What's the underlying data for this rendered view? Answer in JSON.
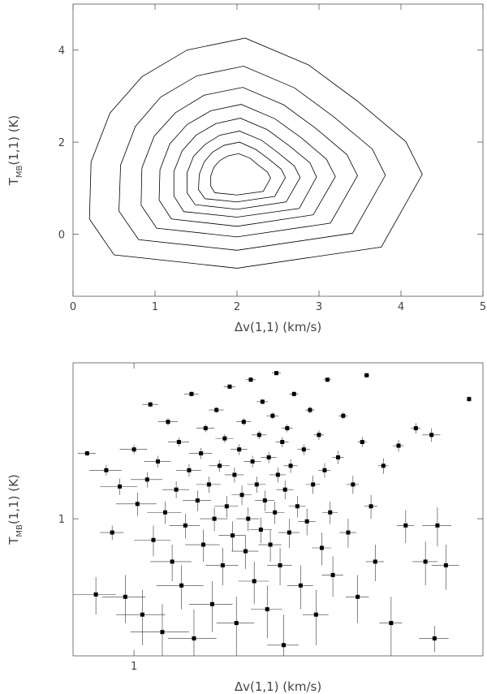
{
  "chart_data": [
    {
      "type": "contour",
      "xlabel": "Δv(1,1) (km/s)",
      "ylabel": [
        "T",
        "MB",
        "(1,1) (K)"
      ],
      "xlim": [
        0,
        5
      ],
      "ylim": [
        -1.35,
        5
      ],
      "xticks": [
        0,
        1,
        2,
        3,
        4,
        5
      ],
      "yticks": [
        0,
        2,
        4
      ],
      "color": "#000000",
      "contours": [
        {
          "x": [
            0.2,
            0.22,
            0.45,
            0.84,
            1.39,
            2.1,
            2.87,
            3.47,
            4.06,
            4.26,
            3.76,
            2.0,
            0.5
          ],
          "y": [
            0.33,
            1.57,
            2.63,
            3.42,
            4.0,
            4.26,
            3.68,
            2.89,
            2.01,
            1.3,
            -0.28,
            -0.74,
            -0.45
          ]
        },
        {
          "x": [
            0.56,
            0.58,
            0.76,
            1.07,
            1.51,
            2.08,
            2.7,
            3.18,
            3.65,
            3.81,
            3.41,
            2.0,
            0.8
          ],
          "y": [
            0.5,
            1.5,
            2.34,
            2.98,
            3.44,
            3.65,
            3.18,
            2.55,
            1.85,
            1.28,
            0.02,
            -0.35,
            -0.12
          ]
        },
        {
          "x": [
            0.83,
            0.84,
            0.99,
            1.25,
            1.6,
            2.07,
            2.57,
            2.96,
            3.34,
            3.47,
            3.14,
            2.0,
            1.02
          ],
          "y": [
            0.63,
            1.44,
            2.13,
            2.64,
            3.02,
            3.19,
            2.81,
            2.3,
            1.73,
            1.27,
            0.24,
            -0.06,
            0.13
          ]
        },
        {
          "x": [
            1.05,
            1.06,
            1.18,
            1.39,
            1.68,
            2.05,
            2.46,
            2.78,
            3.09,
            3.2,
            2.93,
            2.0,
            1.2
          ],
          "y": [
            0.74,
            1.4,
            1.96,
            2.38,
            2.68,
            2.82,
            2.51,
            2.1,
            1.63,
            1.25,
            0.42,
            0.17,
            0.33
          ]
        },
        {
          "x": [
            1.23,
            1.23,
            1.33,
            1.5,
            1.74,
            2.04,
            2.37,
            2.63,
            2.89,
            2.97,
            2.76,
            2.0,
            1.35
          ],
          "y": [
            0.83,
            1.36,
            1.81,
            2.15,
            2.4,
            2.52,
            2.27,
            1.93,
            1.55,
            1.24,
            0.56,
            0.37,
            0.49
          ]
        },
        {
          "x": [
            1.39,
            1.39,
            1.47,
            1.61,
            1.79,
            2.03,
            2.3,
            2.5,
            2.7,
            2.77,
            2.6,
            2.0,
            1.49
          ],
          "y": [
            0.9,
            1.33,
            1.69,
            1.95,
            2.15,
            2.24,
            2.04,
            1.77,
            1.48,
            1.23,
            0.7,
            0.54,
            0.64
          ]
        },
        {
          "x": [
            1.53,
            1.54,
            1.6,
            1.7,
            1.84,
            2.03,
            2.23,
            2.38,
            2.54,
            2.59,
            2.46,
            2.0,
            1.61
          ],
          "y": [
            0.97,
            1.3,
            1.57,
            1.78,
            1.93,
            2.0,
            1.84,
            1.64,
            1.41,
            1.23,
            0.82,
            0.7,
            0.77
          ]
        },
        {
          "x": [
            1.68,
            1.68,
            1.72,
            1.79,
            1.89,
            2.02,
            2.16,
            2.26,
            2.37,
            2.41,
            2.32,
            2.0,
            1.73
          ],
          "y": [
            1.04,
            1.27,
            1.46,
            1.6,
            1.7,
            1.75,
            1.65,
            1.5,
            1.35,
            1.22,
            0.93,
            0.85,
            0.9
          ]
        }
      ]
    },
    {
      "type": "scatter",
      "xlabel": "Δv(1,1) (km/s)",
      "ylabel": [
        "T",
        "MB",
        "(1,1) (K)"
      ],
      "xlim": [
        0.7,
        7.7
      ],
      "ylim": [
        0.35,
        3.3
      ],
      "xticks": [
        1
      ],
      "yticks": [
        1
      ],
      "logx": true,
      "logy": true,
      "color": "#000000",
      "x": [
        0.76,
        0.8,
        0.85,
        0.88,
        0.92,
        0.95,
        1.0,
        1.02,
        1.05,
        1.08,
        1.1,
        1.12,
        1.15,
        1.18,
        1.2,
        1.22,
        1.25,
        1.28,
        1.3,
        1.32,
        1.35,
        1.38,
        1.4,
        1.42,
        1.45,
        1.48,
        1.5,
        1.52,
        1.55,
        1.58,
        1.6,
        1.62,
        1.65,
        1.68,
        1.7,
        1.72,
        1.75,
        1.78,
        1.8,
        1.82,
        1.85,
        1.88,
        1.9,
        1.92,
        1.95,
        1.98,
        2.0,
        2.02,
        2.05,
        2.08,
        2.1,
        2.12,
        2.15,
        2.18,
        2.2,
        2.22,
        2.25,
        2.28,
        2.3,
        2.32,
        2.35,
        2.38,
        2.4,
        2.42,
        2.45,
        2.48,
        2.5,
        2.55,
        2.6,
        2.65,
        2.7,
        2.75,
        2.8,
        2.85,
        2.9,
        2.95,
        3.0,
        3.05,
        3.1,
        3.15,
        3.2,
        3.3,
        3.4,
        3.5,
        3.6,
        3.7,
        3.8,
        3.9,
        4.0,
        4.1,
        4.3,
        4.5,
        4.7,
        4.9,
        5.2,
        5.5,
        5.7,
        5.9,
        6.2,
        5.8,
        7.1
      ],
      "y": [
        1.65,
        0.56,
        1.45,
        0.9,
        1.28,
        0.55,
        1.7,
        1.12,
        0.48,
        1.35,
        2.4,
        0.85,
        1.55,
        0.42,
        1.05,
        2.1,
        0.72,
        1.25,
        1.8,
        0.6,
        0.95,
        1.45,
        2.6,
        0.4,
        1.15,
        1.65,
        0.82,
        2.0,
        1.3,
        0.52,
        1.0,
        2.3,
        1.5,
        0.7,
        1.85,
        1.1,
        2.75,
        0.88,
        1.4,
        0.45,
        1.7,
        1.2,
        2.1,
        0.78,
        1.0,
        2.9,
        1.55,
        0.62,
        1.3,
        1.9,
        0.92,
        2.45,
        1.15,
        0.5,
        1.6,
        0.82,
        2.2,
        1.05,
        3.05,
        1.4,
        0.7,
        1.8,
        0.38,
        1.25,
        2.0,
        0.9,
        1.5,
        2.6,
        1.1,
        0.6,
        1.7,
        0.98,
        2.3,
        1.3,
        0.48,
        1.9,
        0.8,
        1.45,
        2.9,
        1.05,
        0.65,
        1.6,
        2.2,
        0.9,
        1.3,
        0.55,
        1.8,
        3.0,
        1.1,
        0.72,
        1.5,
        0.45,
        1.75,
        0.95,
        2.0,
        0.72,
        1.9,
        0.95,
        0.7,
        0.4,
        2.5
      ],
      "xerr": [
        0.04,
        0.1,
        0.08,
        0.06,
        0.1,
        0.12,
        0.08,
        0.12,
        0.15,
        0.1,
        0.05,
        0.12,
        0.09,
        0.2,
        0.12,
        0.07,
        0.15,
        0.1,
        0.08,
        0.18,
        0.12,
        0.1,
        0.06,
        0.2,
        0.12,
        0.1,
        0.15,
        0.08,
        0.11,
        0.2,
        0.13,
        0.07,
        0.1,
        0.16,
        0.09,
        0.12,
        0.06,
        0.14,
        0.1,
        0.2,
        0.09,
        0.11,
        0.08,
        0.15,
        0.13,
        0.06,
        0.1,
        0.18,
        0.11,
        0.09,
        0.14,
        0.07,
        0.12,
        0.2,
        0.1,
        0.15,
        0.08,
        0.13,
        0.06,
        0.11,
        0.17,
        0.09,
        0.22,
        0.12,
        0.08,
        0.15,
        0.1,
        0.07,
        0.13,
        0.2,
        0.1,
        0.14,
        0.08,
        0.12,
        0.22,
        0.09,
        0.17,
        0.11,
        0.07,
        0.14,
        0.2,
        0.11,
        0.09,
        0.17,
        0.13,
        0.25,
        0.1,
        0.06,
        0.15,
        0.22,
        0.13,
        0.3,
        0.15,
        0.25,
        0.15,
        0.4,
        0.3,
        0.5,
        0.5,
        0.5,
        0.05
      ],
      "yerr": [
        0.03,
        0.08,
        0.06,
        0.05,
        0.08,
        0.1,
        0.06,
        0.1,
        0.1,
        0.08,
        0.05,
        0.1,
        0.07,
        0.1,
        0.09,
        0.06,
        0.1,
        0.08,
        0.06,
        0.1,
        0.09,
        0.07,
        0.05,
        0.1,
        0.09,
        0.07,
        0.1,
        0.06,
        0.08,
        0.1,
        0.09,
        0.05,
        0.07,
        0.1,
        0.06,
        0.09,
        0.05,
        0.1,
        0.08,
        0.1,
        0.07,
        0.09,
        0.06,
        0.1,
        0.09,
        0.05,
        0.07,
        0.1,
        0.08,
        0.06,
        0.09,
        0.05,
        0.09,
        0.1,
        0.07,
        0.1,
        0.06,
        0.09,
        0.05,
        0.08,
        0.1,
        0.07,
        0.1,
        0.09,
        0.06,
        0.1,
        0.08,
        0.05,
        0.09,
        0.1,
        0.07,
        0.1,
        0.06,
        0.09,
        0.1,
        0.07,
        0.1,
        0.08,
        0.05,
        0.09,
        0.1,
        0.08,
        0.06,
        0.1,
        0.09,
        0.1,
        0.07,
        0.05,
        0.1,
        0.1,
        0.09,
        0.1,
        0.08,
        0.12,
        0.08,
        0.12,
        0.1,
        0.14,
        0.12,
        0.04,
        0.05
      ]
    }
  ]
}
